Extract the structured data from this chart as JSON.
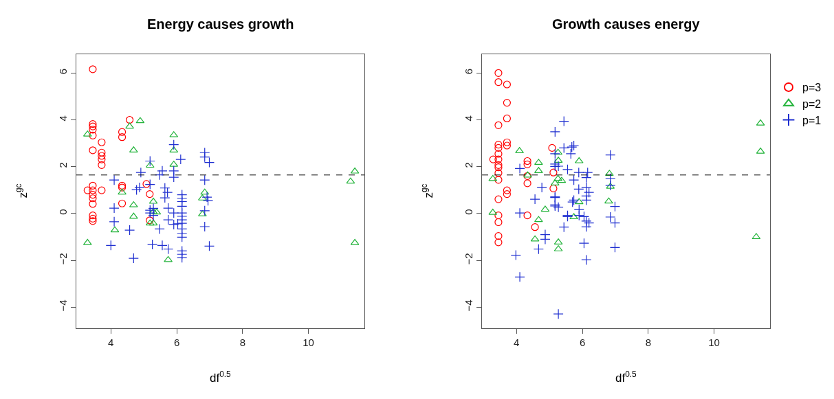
{
  "chart_data": [
    {
      "type": "scatter",
      "title": "Energy causes growth",
      "xlabel": "df$^{0.5}$",
      "ylabel": "z$^{gc}$",
      "xlim": [
        2.95,
        11.7
      ],
      "ylim": [
        -4.9,
        6.8
      ],
      "xticks": [
        4,
        6,
        8,
        10
      ],
      "yticks": [
        -4,
        -2,
        0,
        2,
        4,
        6
      ],
      "legend": false,
      "ref_lines": [
        {
          "axis": "y",
          "value": 1.645,
          "color": "#000000",
          "line_style": "dashed"
        }
      ],
      "series": [
        {
          "color": "#ff0000",
          "marker": "circle",
          "x": [
            3.45,
            3.45,
            3.45,
            3.45,
            3.45,
            3.45,
            3.72,
            3.72,
            3.72,
            3.72,
            3.72,
            3.29,
            3.45,
            3.45,
            3.45,
            3.45,
            3.45,
            3.72,
            3.45,
            3.45,
            3.45,
            4.57,
            4.34,
            4.34,
            4.34,
            4.34,
            4.34,
            5.08,
            5.18,
            5.18
          ],
          "values": [
            6.16,
            3.82,
            3.72,
            3.58,
            3.33,
            2.7,
            3.04,
            2.6,
            2.46,
            2.31,
            2.07,
            0.99,
            1.19,
            0.99,
            0.8,
            0.65,
            0.41,
            0.99,
            -0.08,
            -0.22,
            -0.32,
            4.0,
            3.48,
            3.26,
            1.19,
            1.11,
            0.43,
            1.26,
            0.83,
            -0.29
          ]
        },
        {
          "color": "#22b33a",
          "marker": "triangle",
          "x": [
            3.29,
            3.29,
            4.57,
            4.89,
            4.69,
            5.91,
            5.91,
            5.91,
            5.19,
            4.34,
            4.69,
            4.69,
            4.12,
            5.29,
            5.29,
            5.39,
            5.19,
            5.29,
            5.74,
            6.85,
            6.78,
            6.78,
            11.41,
            11.28,
            11.41
          ],
          "values": [
            3.38,
            -1.25,
            3.72,
            3.95,
            2.7,
            3.35,
            2.7,
            2.09,
            2.05,
            0.9,
            0.36,
            -0.13,
            -0.71,
            0.51,
            0.07,
            0.05,
            -0.42,
            -0.42,
            -1.98,
            0.9,
            0.65,
            -0.03,
            1.8,
            1.37,
            -1.25
          ]
        },
        {
          "color": "#1f2fd0",
          "marker": "cross",
          "x": [
            4.1,
            4.1,
            4.1,
            4.0,
            4.57,
            4.69,
            4.78,
            4.87,
            4.91,
            5.19,
            5.19,
            5.19,
            5.19,
            5.29,
            5.29,
            5.26,
            5.48,
            5.56,
            5.48,
            5.56,
            5.74,
            5.64,
            5.72,
            5.64,
            5.74,
            5.74,
            5.91,
            5.91,
            5.91,
            6.12,
            5.91,
            5.91,
            6.16,
            6.16,
            6.16,
            6.16,
            6.16,
            6.16,
            6.16,
            6.16,
            6.16,
            6.16,
            6.16,
            6.16,
            6.16,
            6.16,
            6.03,
            6.85,
            6.85,
            6.99,
            6.85,
            6.85,
            6.92,
            6.95,
            6.85,
            6.99
          ],
          "values": [
            1.43,
            0.23,
            -0.35,
            -1.36,
            -0.71,
            -1.91,
            1.01,
            1.11,
            1.75,
            2.24,
            1.24,
            0.14,
            0.02,
            0.22,
            -0.08,
            -1.32,
            1.65,
            1.82,
            -0.66,
            -1.36,
            -1.52,
            1.09,
            0.9,
            0.67,
            0.23,
            -0.27,
            2.94,
            1.82,
            1.55,
            2.31,
            0.02,
            -0.47,
            0.8,
            0.65,
            0.51,
            0.31,
            0.02,
            -0.12,
            -0.27,
            -0.42,
            -0.66,
            -0.86,
            -1.01,
            -1.6,
            -1.74,
            -1.89,
            -0.44,
            2.6,
            2.41,
            2.18,
            1.43,
            0.12,
            0.7,
            0.55,
            -0.56,
            -1.39
          ]
        }
      ]
    },
    {
      "type": "scatter",
      "title": "Growth causes energy",
      "xlabel": "df$^{0.5}$",
      "ylabel": "z$^{gc}$",
      "xlim": [
        2.95,
        11.7
      ],
      "ylim": [
        -4.9,
        6.8
      ],
      "xticks": [
        4,
        6,
        8,
        10
      ],
      "yticks": [
        -4,
        -2,
        0,
        2,
        4,
        6
      ],
      "legend": "right",
      "ref_lines": [
        {
          "axis": "y",
          "value": 1.645,
          "color": "#000000",
          "line_style": "dashed"
        }
      ],
      "series": [
        {
          "name": "p=3",
          "color": "#ff0000",
          "marker": "circle",
          "x": [
            3.45,
            3.45,
            3.45,
            3.45,
            3.45,
            3.45,
            3.45,
            3.45,
            3.45,
            3.45,
            3.45,
            3.45,
            3.45,
            3.45,
            3.45,
            3.45,
            3.29,
            3.71,
            3.71,
            3.71,
            3.71,
            3.71,
            3.71,
            3.71,
            4.33,
            4.33,
            4.33,
            4.33,
            4.33,
            4.56,
            5.08,
            5.12,
            5.12
          ],
          "values": [
            6.0,
            5.61,
            3.77,
            2.94,
            2.8,
            2.55,
            2.31,
            2.07,
            1.97,
            1.73,
            1.44,
            0.61,
            -0.08,
            -0.37,
            -0.96,
            -1.23,
            2.31,
            5.51,
            4.73,
            4.06,
            3.04,
            2.9,
            0.99,
            0.83,
            2.24,
            2.1,
            1.6,
            1.29,
            -0.08,
            -0.58,
            2.8,
            1.75,
            1.07
          ]
        },
        {
          "name": "p=2",
          "color": "#22b33a",
          "marker": "triangle",
          "x": [
            3.28,
            3.28,
            4.09,
            4.67,
            4.67,
            4.34,
            4.87,
            4.67,
            4.56,
            5.27,
            5.27,
            5.26,
            5.27,
            5.26,
            5.37,
            5.17,
            5.9,
            5.9,
            5.74,
            6.82,
            6.85,
            6.8,
            11.28,
            11.41,
            11.41
          ],
          "values": [
            1.48,
            0.04,
            2.67,
            2.17,
            1.82,
            1.63,
            0.17,
            -0.27,
            -1.1,
            -1.23,
            -1.52,
            2.6,
            2.26,
            1.48,
            1.4,
            1.29,
            2.24,
            0.49,
            -0.15,
            1.7,
            1.15,
            0.52,
            -1.0,
            3.85,
            2.65
          ]
        },
        {
          "name": "p=1",
          "color": "#1f2fd0",
          "marker": "cross",
          "x": [
            4.1,
            4.1,
            3.98,
            4.1,
            4.77,
            4.56,
            4.87,
            4.87,
            4.67,
            5.17,
            5.44,
            5.17,
            5.17,
            5.17,
            5.17,
            5.17,
            5.17,
            5.44,
            5.65,
            5.68,
            5.44,
            5.55,
            5.55,
            5.7,
            5.74,
            5.27,
            5.89,
            6.16,
            5.74,
            6.12,
            5.89,
            6.12,
            5.17,
            5.27,
            6.12,
            5.74,
            6.12,
            5.9,
            5.9,
            5.55,
            6.05,
            6.12,
            6.12,
            6.05,
            6.12,
            5.27,
            6.85,
            6.85,
            6.85,
            6.85,
            6.99,
            6.99,
            6.99,
            6.2,
            6.2
          ],
          "values": [
            1.92,
            0.02,
            -1.78,
            -2.71,
            1.11,
            0.61,
            -0.9,
            -1.1,
            -1.52,
            3.49,
            3.94,
            2.55,
            2.11,
            2.01,
            0.71,
            0.37,
            0.32,
            2.8,
            2.55,
            2.84,
            -0.58,
            -0.08,
            1.88,
            0.49,
            2.9,
            2.02,
            1.75,
            1.75,
            1.43,
            1.53,
            1.04,
            1.11,
            0.68,
            0.27,
            0.75,
            0.57,
            0.57,
            0.17,
            -0.08,
            -0.13,
            -0.13,
            -0.32,
            -0.57,
            -1.27,
            -1.98,
            -4.29,
            2.5,
            1.5,
            1.2,
            -0.15,
            -0.4,
            0.3,
            -1.45,
            0.9,
            -0.4
          ]
        }
      ]
    }
  ]
}
